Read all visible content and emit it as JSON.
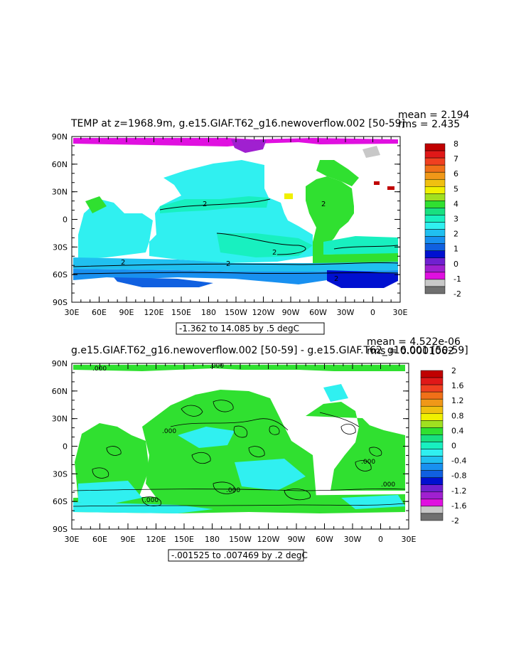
{
  "panels": [
    {
      "title": "TEMP at z=1968.9m, g.e15.GIAF.T62_g16.newoverflow.002 [50-59]",
      "stats": {
        "mean": "mean = 2.194",
        "rms": "rms = 2.435"
      },
      "range_label": "-1.362 to 14.085 by .5 degC",
      "lat_ticks": [
        "90N",
        "60N",
        "30N",
        "0",
        "30S",
        "60S",
        "90S"
      ],
      "lon_ticks": [
        "30E",
        "60E",
        "90E",
        "120E",
        "150E",
        "180",
        "150W",
        "120W",
        "90W",
        "60W",
        "30W",
        "0",
        "30E"
      ],
      "colorbar": {
        "labels": [
          "8",
          "7",
          "6",
          "5",
          "4",
          "3",
          "2",
          "1",
          "0",
          "-1",
          "-2"
        ],
        "colors": [
          "#c00000",
          "#e01818",
          "#f04020",
          "#f07018",
          "#f09818",
          "#f0c010",
          "#f0f000",
          "#a0e020",
          "#30e030",
          "#18e080",
          "#18f0c0",
          "#30f0f0",
          "#20c0f0",
          "#1890f0",
          "#1060e0",
          "#0010d0",
          "#7020d0",
          "#a020d0",
          "#e010e0",
          "#c8c8c8",
          "#707070"
        ]
      },
      "contour_labels": [
        "2",
        "2",
        "2",
        "2",
        "2",
        "2"
      ]
    },
    {
      "title": "g.e15.GIAF.T62_g16.newoverflow.002 [50-59] - g.e15.GIAF.T62_g16.001 [50-59]",
      "stats": {
        "mean": "mean = 4.522e-06",
        "rms": "rms = 0.0001062"
      },
      "range_label": "-.001525 to .007469 by .2 degC",
      "lat_ticks": [
        "90N",
        "60N",
        "30N",
        "0",
        "30S",
        "60S",
        "90S"
      ],
      "lon_ticks": [
        "30E",
        "60E",
        "90E",
        "120E",
        "150E",
        "180",
        "150W",
        "120W",
        "90W",
        "60W",
        "30W",
        "0",
        "30E"
      ],
      "colorbar": {
        "labels": [
          "2",
          "1.6",
          "1.2",
          "0.8",
          "0.4",
          "0",
          "-0.4",
          "-0.8",
          "-1.2",
          "-1.6",
          "-2"
        ],
        "colors": [
          "#c00000",
          "#e01818",
          "#f04020",
          "#f07018",
          "#f09818",
          "#f0c010",
          "#f0f000",
          "#a0e020",
          "#30e030",
          "#18e080",
          "#18f0c0",
          "#30f0f0",
          "#20c0f0",
          "#1890f0",
          "#1060e0",
          "#0010d0",
          "#7020d0",
          "#a020d0",
          "#e010e0",
          "#c8c8c8",
          "#707070"
        ]
      },
      "contour_labels": [
        ".000",
        ".000",
        ".000",
        ".000",
        ".000",
        ".000",
        ".000"
      ]
    }
  ],
  "legend_colors": {
    "ocean_main": "#30f0f0",
    "ocean_green": "#30e030",
    "ocean_blue": "#1890f0",
    "deep_blue": "#0010d0",
    "purple": "#a020d0",
    "magenta": "#e010e0",
    "gray": "#c8c8c8"
  }
}
